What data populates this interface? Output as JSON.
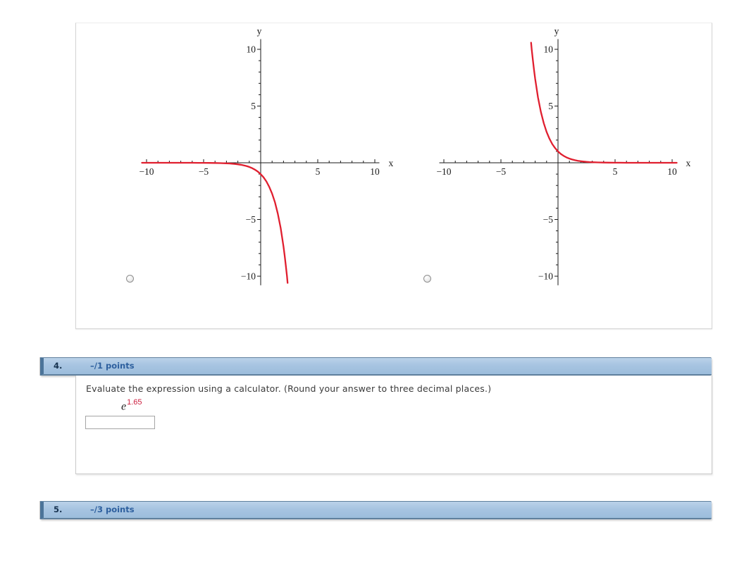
{
  "colors": {
    "curve_red": "#e01f2f",
    "axis": "#1a1a1a",
    "header_background": "#a7c4e1",
    "header_border": "#60809d",
    "header_accent_bar": "#4c7499",
    "question_number_text": "#16324f",
    "points_text": "#2d5f9e",
    "exponent_red": "#cc1f3f"
  },
  "graph_panel": {
    "options": [
      {
        "id": "left-graph",
        "radio_selected": false
      },
      {
        "id": "right-graph",
        "radio_selected": false
      }
    ]
  },
  "chart_data": [
    {
      "type": "line",
      "title": "",
      "xlabel": "x",
      "ylabel": "y",
      "xlim": [
        -10.4,
        10.4
      ],
      "ylim": [
        -10.8,
        10.9
      ],
      "x_major_ticks": [
        -10,
        -5,
        5,
        10
      ],
      "y_major_ticks": [
        10,
        5,
        -5,
        -10
      ],
      "minor_tick_step": 1,
      "grid": false,
      "legend": "none",
      "series": [
        {
          "name": "curve",
          "color": "#e01f2f",
          "points": [
            [
              -10.4,
              0
            ],
            [
              -8,
              0
            ],
            [
              -7,
              -0.001
            ],
            [
              -6,
              -0.002
            ],
            [
              -5.5,
              -0.004
            ],
            [
              -5,
              -0.007
            ],
            [
              -4.5,
              -0.011
            ],
            [
              -4,
              -0.018
            ],
            [
              -3.5,
              -0.03
            ],
            [
              -3,
              -0.05
            ],
            [
              -2.75,
              -0.064
            ],
            [
              -2.5,
              -0.082
            ],
            [
              -2.25,
              -0.105
            ],
            [
              -2,
              -0.135
            ],
            [
              -1.75,
              -0.174
            ],
            [
              -1.5,
              -0.223
            ],
            [
              -1.25,
              -0.287
            ],
            [
              -1,
              -0.368
            ],
            [
              -0.75,
              -0.472
            ],
            [
              -0.5,
              -0.607
            ],
            [
              -0.25,
              -0.779
            ],
            [
              0,
              -1
            ],
            [
              0.25,
              -1.284
            ],
            [
              0.5,
              -1.649
            ],
            [
              0.75,
              -2.117
            ],
            [
              1,
              -2.718
            ],
            [
              1.25,
              -3.49
            ],
            [
              1.5,
              -4.482
            ],
            [
              1.75,
              -5.755
            ],
            [
              2,
              -7.389
            ],
            [
              2.1,
              -8.166
            ],
            [
              2.2,
              -9.025
            ],
            [
              2.3,
              -9.974
            ],
            [
              2.36,
              -10.59
            ]
          ]
        }
      ]
    },
    {
      "type": "line",
      "title": "",
      "xlabel": "x",
      "ylabel": "y",
      "xlim": [
        -10.4,
        10.4
      ],
      "ylim": [
        -10.8,
        10.9
      ],
      "x_major_ticks": [
        -10,
        -5,
        5,
        10
      ],
      "y_major_ticks": [
        10,
        5,
        -5,
        -10
      ],
      "minor_tick_step": 1,
      "grid": false,
      "legend": "none",
      "series": [
        {
          "name": "curve",
          "color": "#e01f2f",
          "points": [
            [
              -2.36,
              10.59
            ],
            [
              -2.3,
              9.974
            ],
            [
              -2.2,
              9.025
            ],
            [
              -2.1,
              8.166
            ],
            [
              -2,
              7.389
            ],
            [
              -1.75,
              5.755
            ],
            [
              -1.5,
              4.482
            ],
            [
              -1.25,
              3.49
            ],
            [
              -1,
              2.718
            ],
            [
              -0.75,
              2.117
            ],
            [
              -0.5,
              1.649
            ],
            [
              -0.25,
              1.284
            ],
            [
              0,
              1
            ],
            [
              0.25,
              0.779
            ],
            [
              0.5,
              0.607
            ],
            [
              0.75,
              0.472
            ],
            [
              1,
              0.368
            ],
            [
              1.25,
              0.287
            ],
            [
              1.5,
              0.223
            ],
            [
              1.75,
              0.174
            ],
            [
              2,
              0.135
            ],
            [
              2.25,
              0.105
            ],
            [
              2.5,
              0.082
            ],
            [
              2.75,
              0.064
            ],
            [
              3,
              0.05
            ],
            [
              3.5,
              0.03
            ],
            [
              4,
              0.018
            ],
            [
              4.5,
              0.011
            ],
            [
              5,
              0.007
            ],
            [
              5.5,
              0.004
            ],
            [
              6,
              0.002
            ],
            [
              7,
              0.001
            ],
            [
              8,
              0
            ],
            [
              10.4,
              0
            ]
          ]
        }
      ]
    }
  ],
  "questions": [
    {
      "number": "4.",
      "points": "–/1 points",
      "prompt": "Evaluate the expression using a calculator. (Round your answer to three decimal places.)",
      "expression": {
        "base": "e",
        "exponent": "1.65"
      },
      "answer_value": ""
    },
    {
      "number": "5.",
      "points": "–/3 points"
    }
  ]
}
